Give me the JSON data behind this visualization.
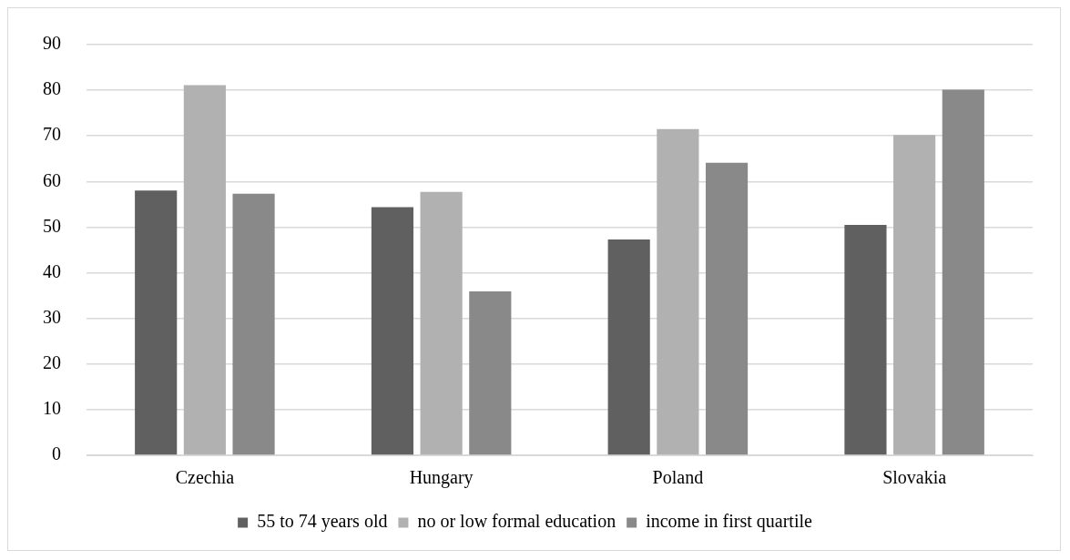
{
  "chart_data": {
    "type": "bar",
    "categories": [
      "Czechia",
      "Hungary",
      "Poland",
      "Slovakia"
    ],
    "series": [
      {
        "name": "55 to 74 years old",
        "color": "#606060",
        "values": [
          58.0,
          54.4,
          47.3,
          50.5
        ]
      },
      {
        "name": "no or low formal education",
        "color": "#b1b1b1",
        "values": [
          81.1,
          57.7,
          71.5,
          70.2
        ]
      },
      {
        "name": "income in first quartile",
        "color": "#898989",
        "values": [
          57.3,
          35.9,
          64.1,
          80.1
        ]
      }
    ],
    "ylim": [
      0,
      90
    ],
    "yticks": [
      0,
      10,
      20,
      30,
      40,
      50,
      60,
      70,
      80,
      90
    ],
    "grid": "y",
    "legend": "bottom"
  }
}
